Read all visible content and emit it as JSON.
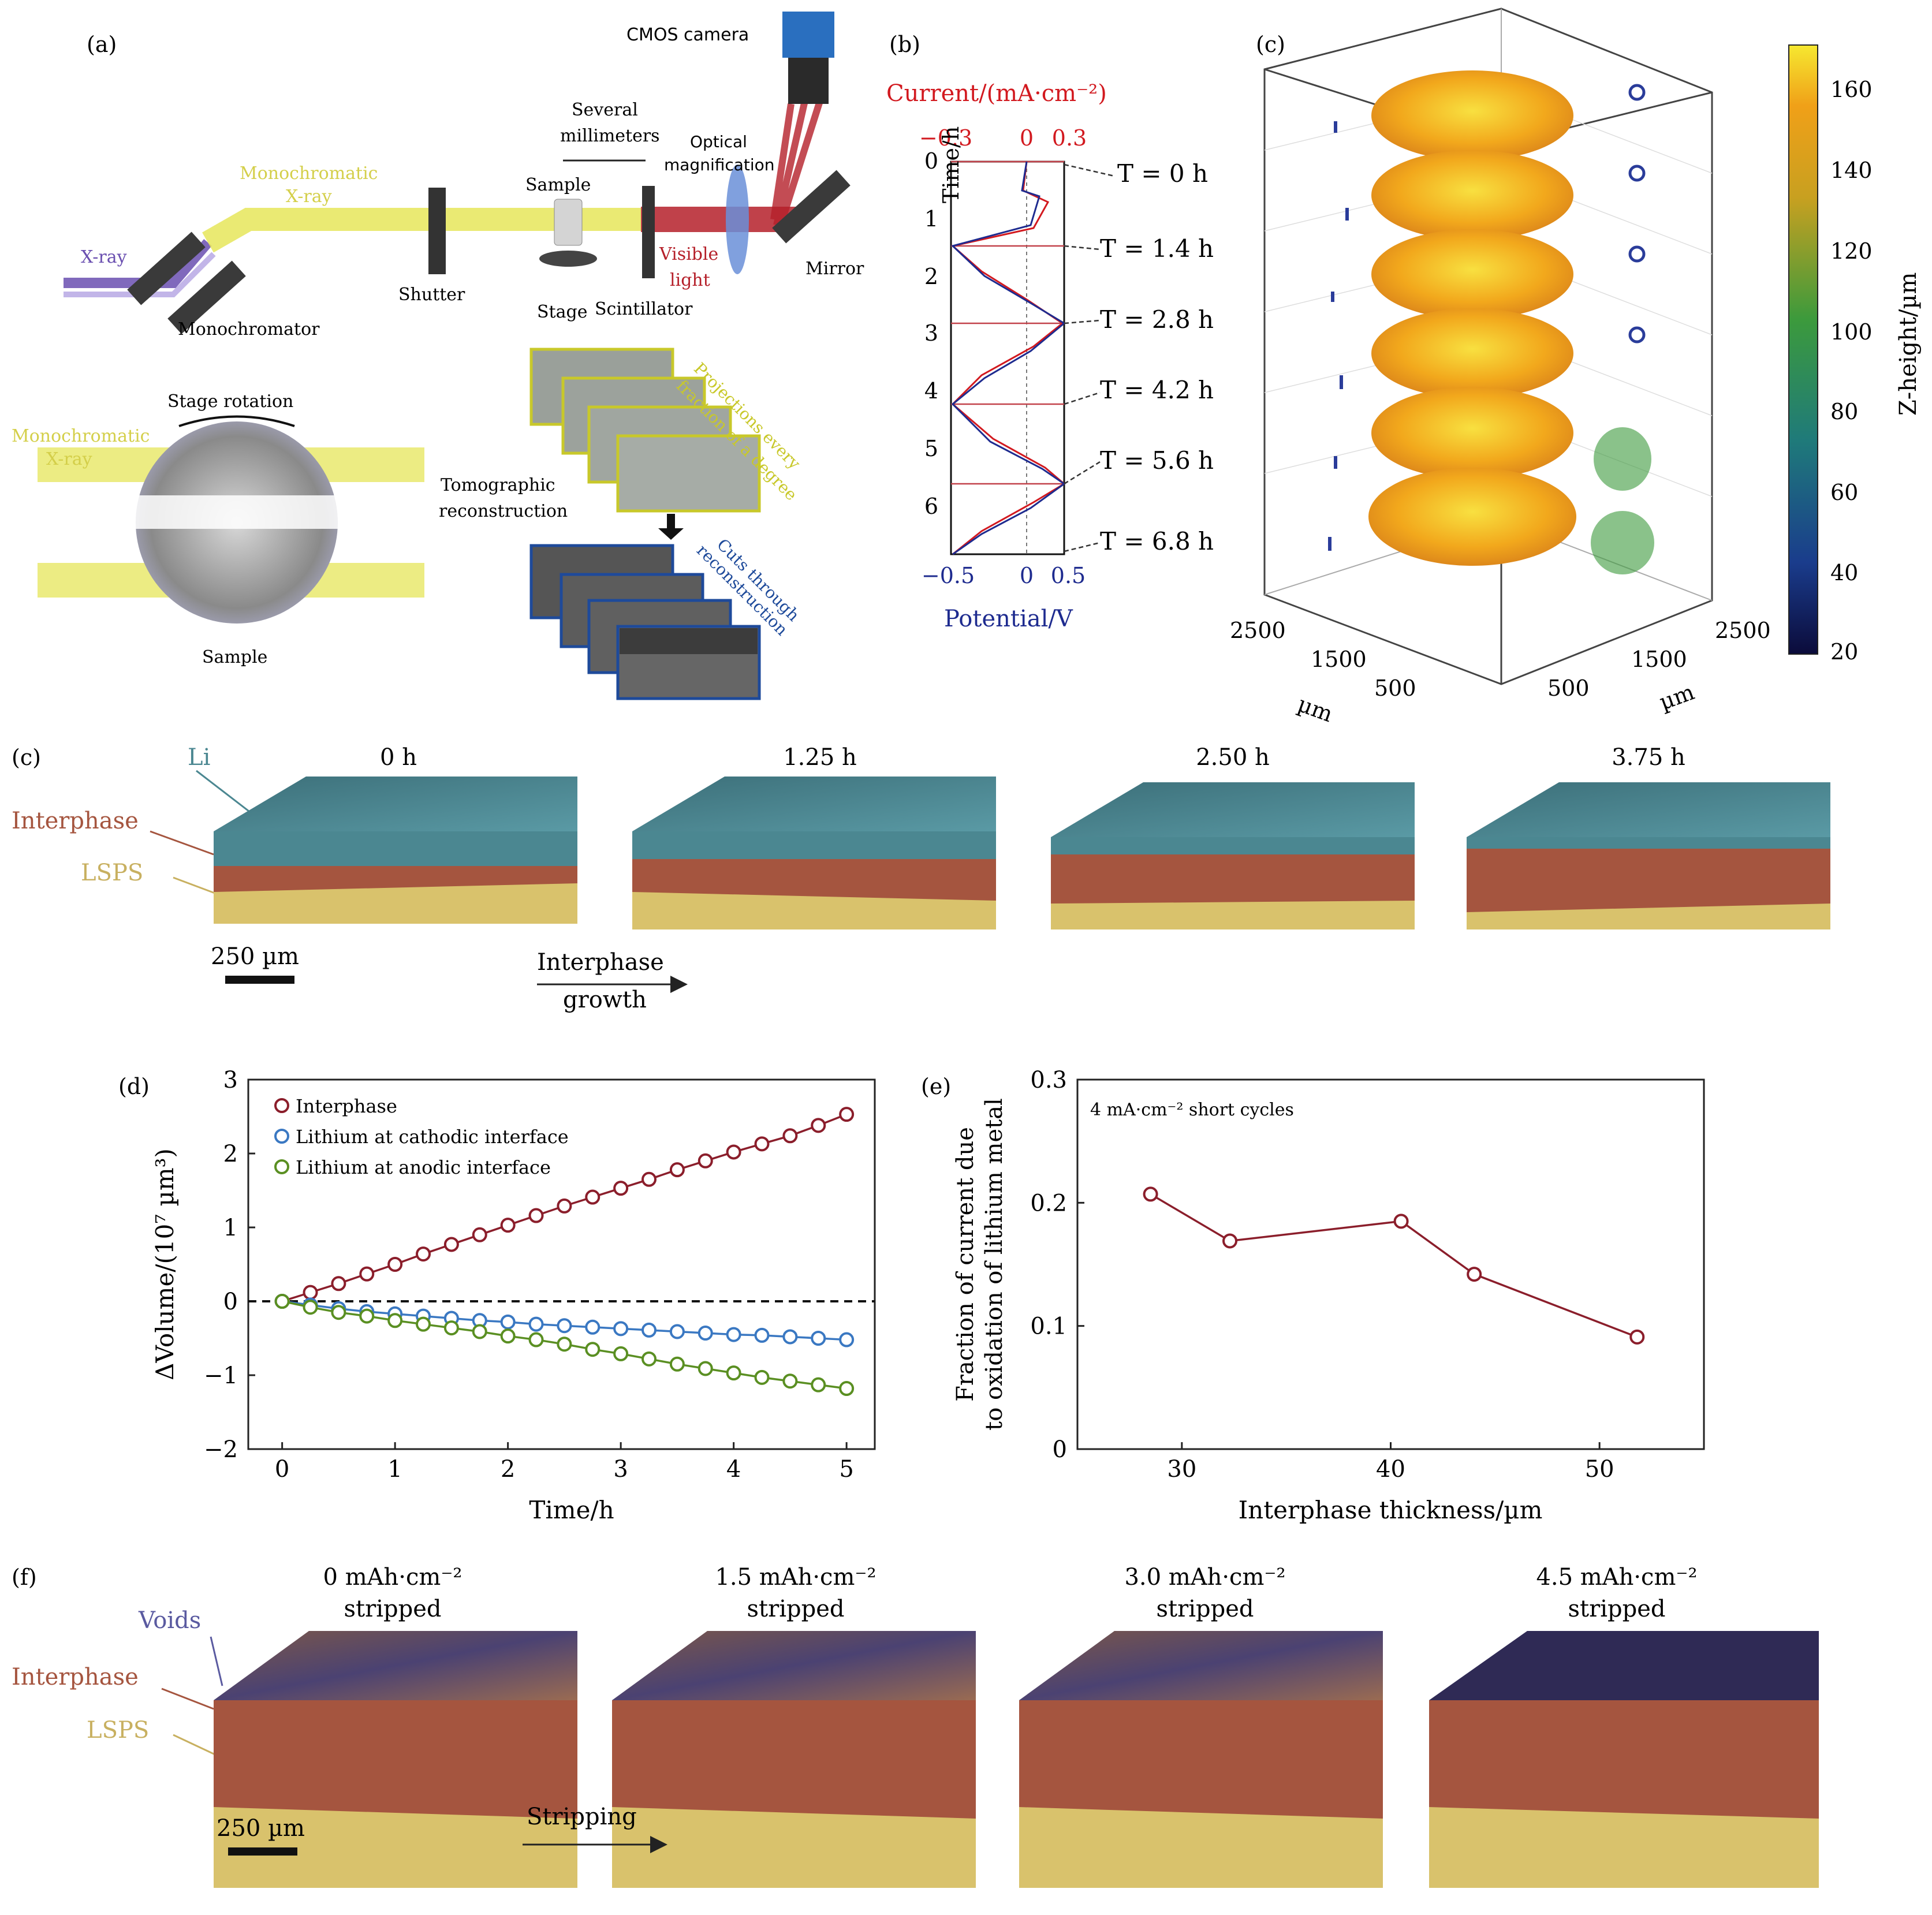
{
  "panel_a": {
    "label": "(a)",
    "cmos_camera": "CMOS camera",
    "several": "Several",
    "millimeters": "millimeters",
    "optical": "Optical",
    "magnification": "magnification",
    "mono_line1": "Monochromatic",
    "mono_line2": "X-ray",
    "sample": "Sample",
    "xray": "X-ray",
    "shutter": "Shutter",
    "visible_line1": "Visible",
    "visible_line2": "light",
    "mirror": "Mirror",
    "stage": "Stage",
    "scintillator": "Scintillator",
    "monochromator": "Monochromator",
    "stage_rotation": "Stage rotation",
    "tomo_line1": "Tomographic",
    "tomo_line2": "reconstruction",
    "projections_line1": "Projections every",
    "projections_line2": "fraction of a degree",
    "cuts_line1": "Cuts through",
    "cuts_line2": "reconstruction",
    "sample_bottom": "Sample"
  },
  "panel_b": {
    "label": "(b)",
    "top_axis_label": "Current/(mA·cm⁻²)",
    "top_ticks": [
      "−0.3",
      "0",
      "0.3"
    ],
    "bottom_ticks": [
      "−0.5",
      "0",
      "0.5"
    ],
    "bottom_axis_label": "Potential/V",
    "y_label": "Time/h",
    "y_ticks": [
      "0",
      "1",
      "2",
      "3",
      "4",
      "5",
      "6"
    ],
    "time_labels": [
      "T = 0 h",
      "T = 1.4 h",
      "T = 2.8 h",
      "T = 4.2 h",
      "T = 5.6 h",
      "T = 6.8 h"
    ]
  },
  "panel_c_top": {
    "label": "(c)",
    "colorbar_label": "Z-height/µm",
    "colorbar_ticks": [
      "160",
      "140",
      "120",
      "100",
      "80",
      "60",
      "40",
      "20"
    ],
    "x_ticks": [
      "2500",
      "1500",
      "500"
    ],
    "y_ticks": [
      "500",
      "1500",
      "2500"
    ],
    "x_unit": "µm",
    "y_unit": "µm"
  },
  "panel_c_mid": {
    "label": "(c)",
    "li": "Li",
    "interphase": "Interphase",
    "lsps": "LSPS",
    "times": [
      "0 h",
      "1.25 h",
      "2.50 h",
      "3.75 h"
    ],
    "scale_bar": "250 µm",
    "arrow_line1": "Interphase",
    "arrow_line2": "growth"
  },
  "panel_f": {
    "label": "(f)",
    "voids": "Voids",
    "interphase": "Interphase",
    "lsps": "LSPS",
    "titles": [
      "0 mAh·cm⁻²",
      "1.5 mAh·cm⁻²",
      "3.0 mAh·cm⁻²",
      "4.5 mAh·cm⁻²"
    ],
    "subtitle": "stripped",
    "scale_bar": "250 µm",
    "arrow_label": "Stripping"
  },
  "colors": {
    "interphase": "#8b1e2b",
    "cathodic": "#3a78c2",
    "anodic": "#5a8f22",
    "li_block": "#4b8791",
    "interphase_block": "#a5553f",
    "lsps_block": "#d9c26c",
    "beam": "#e6e65a",
    "xray": "#6a4fb0",
    "red_light": "#b5202a",
    "current_red": "#d2191f",
    "potential_blue": "#1e2b8f"
  },
  "chart_data": [
    {
      "panel": "(d)",
      "type": "line",
      "xlabel": "Time/h",
      "ylabel": "ΔVolume/(10⁷ µm³)",
      "xlim": [
        -0.3,
        5.25
      ],
      "ylim": [
        -2,
        3
      ],
      "xticks": [
        "0",
        "1",
        "2",
        "3",
        "4",
        "5"
      ],
      "yticks": [
        "3",
        "2",
        "1",
        "0",
        "−1",
        "−2"
      ],
      "x": [
        0,
        0.25,
        0.5,
        0.75,
        1.0,
        1.25,
        1.5,
        1.75,
        2.0,
        2.25,
        2.5,
        2.75,
        3.0,
        3.25,
        3.5,
        3.75,
        4.0,
        4.25,
        4.5,
        4.75,
        5.0
      ],
      "series": [
        {
          "name": "Interphase",
          "color": "#8b1e2b",
          "values": [
            0,
            0.12,
            0.24,
            0.37,
            0.5,
            0.64,
            0.77,
            0.9,
            1.03,
            1.16,
            1.29,
            1.41,
            1.53,
            1.65,
            1.78,
            1.9,
            2.02,
            2.13,
            2.24,
            2.38,
            2.53
          ]
        },
        {
          "name": "Lithium at cathodic interface",
          "color": "#3a78c2",
          "values": [
            0,
            -0.05,
            -0.1,
            -0.14,
            -0.17,
            -0.2,
            -0.23,
            -0.26,
            -0.28,
            -0.31,
            -0.33,
            -0.35,
            -0.37,
            -0.39,
            -0.41,
            -0.43,
            -0.45,
            -0.46,
            -0.48,
            -0.5,
            -0.52
          ]
        },
        {
          "name": "Lithium at anodic interface",
          "color": "#5a8f22",
          "values": [
            0,
            -0.08,
            -0.15,
            -0.2,
            -0.26,
            -0.31,
            -0.36,
            -0.41,
            -0.47,
            -0.52,
            -0.58,
            -0.65,
            -0.71,
            -0.78,
            -0.85,
            -0.91,
            -0.97,
            -1.03,
            -1.08,
            -1.13,
            -1.18
          ]
        }
      ],
      "zero_line": "dashed",
      "legend": "top-left"
    },
    {
      "panel": "(e)",
      "type": "line",
      "annotation": "4 mA·cm⁻² short cycles",
      "xlabel": "Interphase thickness/µm",
      "ylabel_line1": "Fraction of current due",
      "ylabel_line2": "to oxidation of lithium metal",
      "xlim": [
        25,
        55
      ],
      "ylim": [
        0,
        0.3
      ],
      "xticks": [
        "30",
        "40",
        "50"
      ],
      "yticks": [
        "0.3",
        "0.2",
        "0.1",
        "0"
      ],
      "x": [
        28.5,
        32.3,
        40.5,
        44.0,
        51.8
      ],
      "series": [
        {
          "color": "#8b1e2b",
          "values": [
            0.207,
            0.169,
            0.185,
            0.142,
            0.091
          ]
        }
      ]
    }
  ]
}
